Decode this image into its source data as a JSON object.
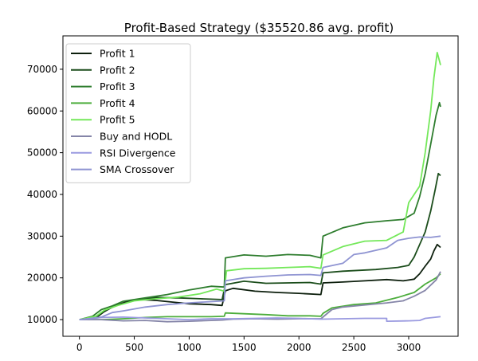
{
  "chart_data": {
    "type": "line",
    "title": "Profit-Based Strategy ($35520.86 avg. profit)",
    "xlabel": "",
    "ylabel": "",
    "xlim": [
      -150,
      3450
    ],
    "ylim": [
      6000,
      78000
    ],
    "xticks": [
      0,
      500,
      1000,
      1500,
      2000,
      2500,
      3000
    ],
    "yticks": [
      10000,
      20000,
      30000,
      40000,
      50000,
      60000,
      70000
    ],
    "grid": false,
    "legend_position": "top-left",
    "series": [
      {
        "name": "Profit 1",
        "color": "#0d1f0d",
        "points": [
          [
            0,
            10000
          ],
          [
            150,
            10400
          ],
          [
            220,
            11800
          ],
          [
            300,
            13000
          ],
          [
            420,
            14200
          ],
          [
            550,
            14800
          ],
          [
            700,
            14600
          ],
          [
            850,
            14200
          ],
          [
            1000,
            13800
          ],
          [
            1200,
            13600
          ],
          [
            1300,
            13400
          ],
          [
            1330,
            16900
          ],
          [
            1400,
            17500
          ],
          [
            1600,
            16800
          ],
          [
            1800,
            16500
          ],
          [
            2000,
            16300
          ],
          [
            2200,
            16000
          ],
          [
            2220,
            18800
          ],
          [
            2400,
            19000
          ],
          [
            2600,
            19300
          ],
          [
            2800,
            19600
          ],
          [
            2950,
            19300
          ],
          [
            3050,
            19700
          ],
          [
            3100,
            21000
          ],
          [
            3150,
            22800
          ],
          [
            3200,
            24500
          ],
          [
            3230,
            26500
          ],
          [
            3260,
            28000
          ],
          [
            3290,
            27300
          ]
        ]
      },
      {
        "name": "Profit 2",
        "color": "#1b4d1b",
        "points": [
          [
            0,
            10000
          ],
          [
            150,
            10500
          ],
          [
            220,
            12000
          ],
          [
            350,
            13500
          ],
          [
            500,
            14600
          ],
          [
            700,
            15300
          ],
          [
            900,
            15200
          ],
          [
            1100,
            15000
          ],
          [
            1300,
            14800
          ],
          [
            1330,
            18400
          ],
          [
            1500,
            19200
          ],
          [
            1700,
            18700
          ],
          [
            1900,
            18800
          ],
          [
            2100,
            18900
          ],
          [
            2200,
            18500
          ],
          [
            2220,
            21200
          ],
          [
            2400,
            21600
          ],
          [
            2700,
            22000
          ],
          [
            2900,
            22500
          ],
          [
            3000,
            23000
          ],
          [
            3050,
            25000
          ],
          [
            3100,
            28000
          ],
          [
            3150,
            31000
          ],
          [
            3200,
            36000
          ],
          [
            3240,
            41000
          ],
          [
            3270,
            45000
          ],
          [
            3290,
            44500
          ]
        ]
      },
      {
        "name": "Profit 3",
        "color": "#2e7d2e",
        "points": [
          [
            0,
            10000
          ],
          [
            120,
            10800
          ],
          [
            200,
            12400
          ],
          [
            300,
            13300
          ],
          [
            400,
            14400
          ],
          [
            600,
            15200
          ],
          [
            800,
            16000
          ],
          [
            1000,
            17100
          ],
          [
            1200,
            18000
          ],
          [
            1320,
            17800
          ],
          [
            1330,
            24800
          ],
          [
            1500,
            25500
          ],
          [
            1700,
            25200
          ],
          [
            1900,
            25600
          ],
          [
            2100,
            25400
          ],
          [
            2200,
            24800
          ],
          [
            2220,
            30000
          ],
          [
            2400,
            32000
          ],
          [
            2600,
            33200
          ],
          [
            2800,
            33700
          ],
          [
            2950,
            34000
          ],
          [
            3050,
            35500
          ],
          [
            3100,
            39500
          ],
          [
            3150,
            45000
          ],
          [
            3200,
            52000
          ],
          [
            3250,
            59000
          ],
          [
            3280,
            62000
          ],
          [
            3290,
            61000
          ]
        ]
      },
      {
        "name": "Profit 4",
        "color": "#4cad3c",
        "points": [
          [
            0,
            10000
          ],
          [
            200,
            10000
          ],
          [
            400,
            10200
          ],
          [
            600,
            10500
          ],
          [
            800,
            10700
          ],
          [
            1000,
            10700
          ],
          [
            1200,
            10700
          ],
          [
            1320,
            10800
          ],
          [
            1330,
            11600
          ],
          [
            1500,
            11400
          ],
          [
            1700,
            11200
          ],
          [
            1900,
            10900
          ],
          [
            2100,
            10900
          ],
          [
            2200,
            10800
          ],
          [
            2220,
            11500
          ],
          [
            2300,
            12800
          ],
          [
            2500,
            13600
          ],
          [
            2700,
            14000
          ],
          [
            2900,
            15300
          ],
          [
            3050,
            16500
          ],
          [
            3150,
            18500
          ],
          [
            3250,
            20000
          ],
          [
            3290,
            21000
          ]
        ]
      },
      {
        "name": "Profit 5",
        "color": "#74e85a",
        "points": [
          [
            0,
            10000
          ],
          [
            150,
            10800
          ],
          [
            230,
            12300
          ],
          [
            350,
            13400
          ],
          [
            500,
            14500
          ],
          [
            700,
            15000
          ],
          [
            900,
            15400
          ],
          [
            1100,
            16200
          ],
          [
            1250,
            17300
          ],
          [
            1320,
            16800
          ],
          [
            1340,
            21700
          ],
          [
            1500,
            22200
          ],
          [
            1700,
            22300
          ],
          [
            1900,
            22500
          ],
          [
            2100,
            22700
          ],
          [
            2200,
            22300
          ],
          [
            2220,
            25500
          ],
          [
            2400,
            27500
          ],
          [
            2600,
            28800
          ],
          [
            2800,
            29000
          ],
          [
            2950,
            31000
          ],
          [
            3000,
            38000
          ],
          [
            3050,
            40000
          ],
          [
            3100,
            42000
          ],
          [
            3150,
            50000
          ],
          [
            3200,
            60000
          ],
          [
            3230,
            68000
          ],
          [
            3260,
            74000
          ],
          [
            3280,
            72000
          ],
          [
            3290,
            71000
          ]
        ]
      },
      {
        "name": "Buy and HODL",
        "color": "#8585a8",
        "points": [
          [
            0,
            10000
          ],
          [
            200,
            10000
          ],
          [
            400,
            9700
          ],
          [
            600,
            9800
          ],
          [
            800,
            9500
          ],
          [
            1000,
            9600
          ],
          [
            1200,
            9800
          ],
          [
            1300,
            9900
          ],
          [
            1400,
            10100
          ],
          [
            1600,
            10200
          ],
          [
            1800,
            10100
          ],
          [
            2000,
            10200
          ],
          [
            2200,
            10200
          ],
          [
            2300,
            12400
          ],
          [
            2400,
            13000
          ],
          [
            2600,
            13500
          ],
          [
            2800,
            14000
          ],
          [
            2950,
            14500
          ],
          [
            3050,
            15600
          ],
          [
            3150,
            17000
          ],
          [
            3250,
            19500
          ],
          [
            3290,
            21500
          ]
        ]
      },
      {
        "name": "RSI Divergence",
        "color": "#9a9ae0",
        "points": [
          [
            0,
            10000
          ],
          [
            100,
            10200
          ],
          [
            200,
            10500
          ],
          [
            400,
            10600
          ],
          [
            600,
            10400
          ],
          [
            800,
            10200
          ],
          [
            1000,
            10000
          ],
          [
            1200,
            10200
          ],
          [
            1400,
            10200
          ],
          [
            1600,
            10300
          ],
          [
            1800,
            10400
          ],
          [
            2000,
            10300
          ],
          [
            2200,
            10100
          ],
          [
            2400,
            10200
          ],
          [
            2600,
            10300
          ],
          [
            2800,
            10300
          ],
          [
            2800,
            9600
          ],
          [
            3000,
            9700
          ],
          [
            3100,
            9800
          ],
          [
            3150,
            10300
          ],
          [
            3290,
            10700
          ]
        ]
      },
      {
        "name": "SMA Crossover",
        "color": "#8f94d2",
        "points": [
          [
            0,
            10000
          ],
          [
            200,
            10600
          ],
          [
            300,
            11700
          ],
          [
            400,
            12100
          ],
          [
            600,
            13000
          ],
          [
            800,
            13600
          ],
          [
            1000,
            14000
          ],
          [
            1200,
            14300
          ],
          [
            1320,
            14500
          ],
          [
            1330,
            19300
          ],
          [
            1500,
            20000
          ],
          [
            1700,
            20400
          ],
          [
            1900,
            20700
          ],
          [
            2100,
            20800
          ],
          [
            2200,
            20600
          ],
          [
            2220,
            22500
          ],
          [
            2400,
            23500
          ],
          [
            2500,
            25600
          ],
          [
            2600,
            26000
          ],
          [
            2800,
            27200
          ],
          [
            2900,
            29000
          ],
          [
            3000,
            29500
          ],
          [
            3100,
            29800
          ],
          [
            3200,
            29700
          ],
          [
            3290,
            30000
          ]
        ]
      }
    ]
  }
}
